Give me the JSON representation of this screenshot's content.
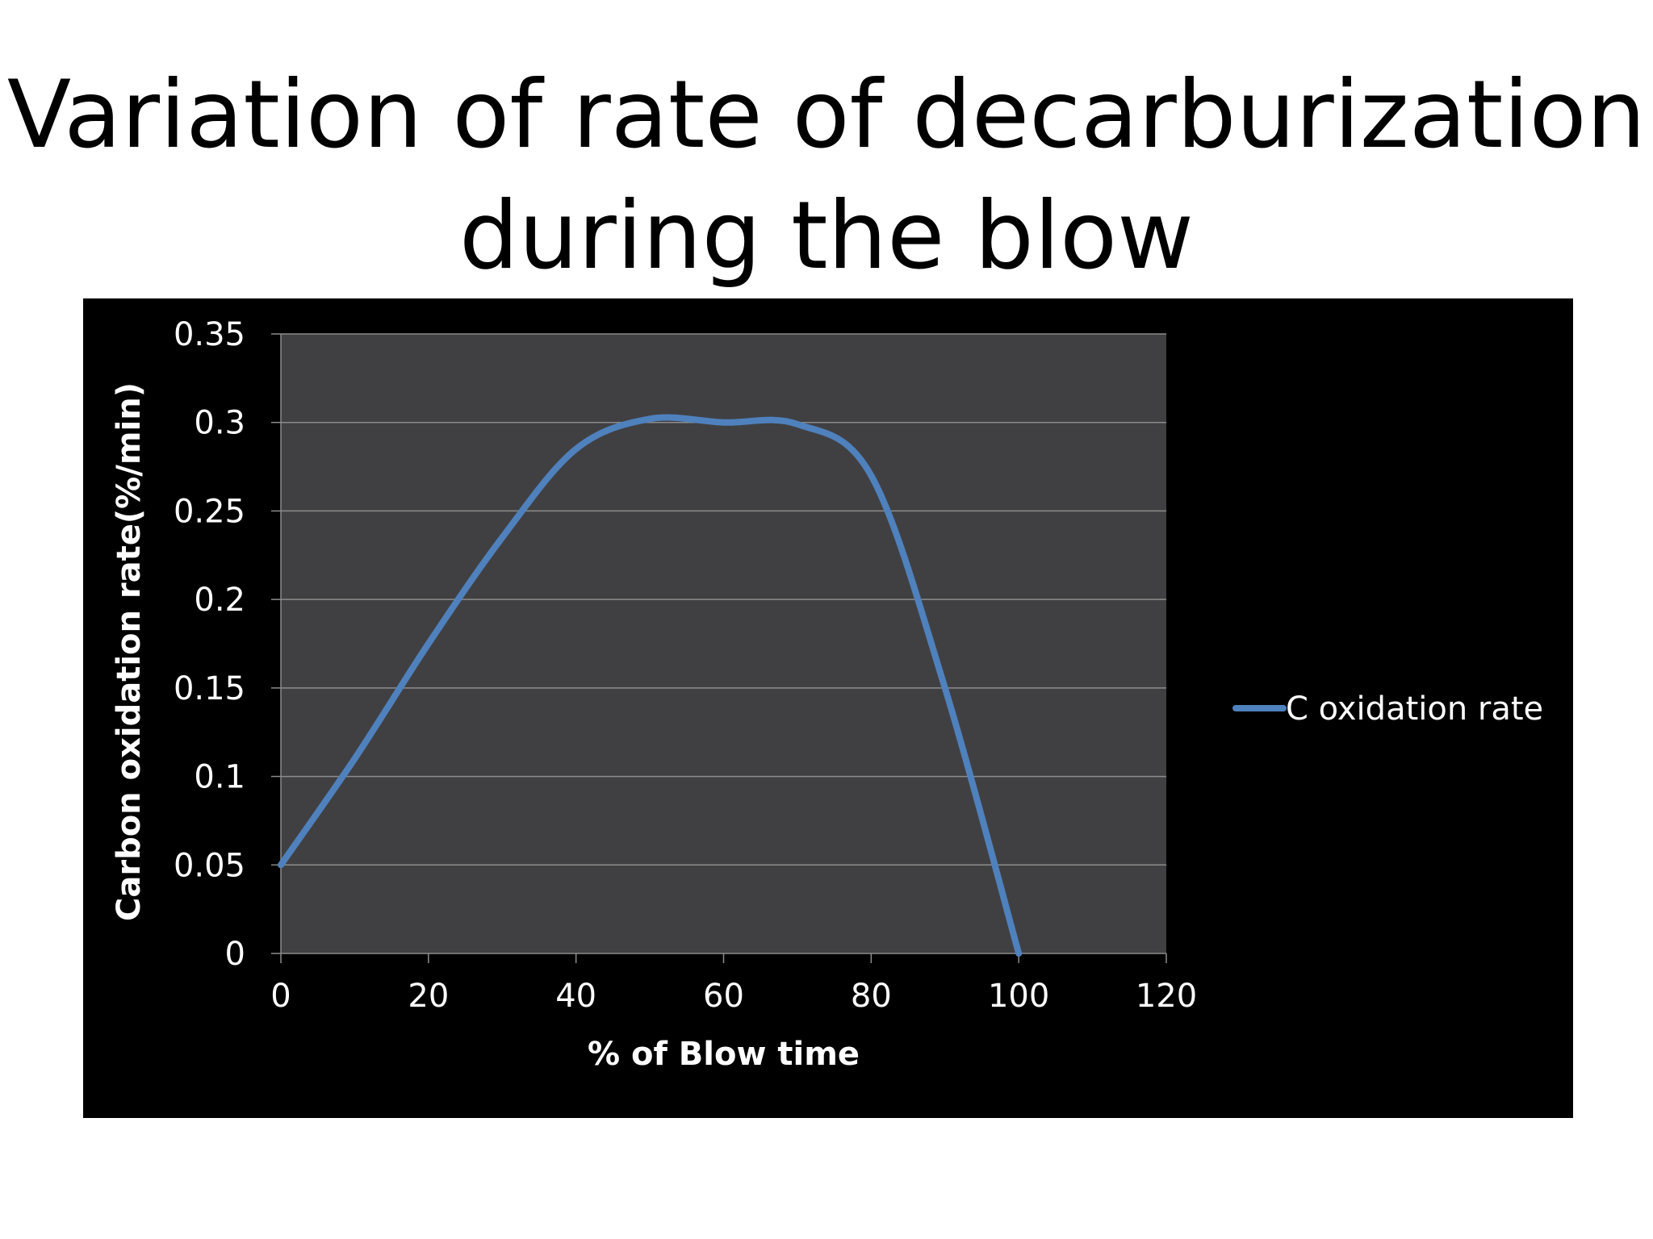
{
  "slide": {
    "title_line1": "Variation of rate of decarburization",
    "title_line2": "during the blow"
  },
  "colors": {
    "chart_background": "#000000",
    "plot_background": "#404043",
    "gridline": "#8c8c8c",
    "series_line": "#4f81bd",
    "text": "#ffffff"
  },
  "chart_data": {
    "type": "line",
    "xlabel": "% of Blow time",
    "ylabel": "Carbon oxidation rate(%/min)",
    "xlim": [
      0,
      120
    ],
    "ylim": [
      0,
      0.35
    ],
    "xticks": [
      "0",
      "20",
      "40",
      "60",
      "80",
      "100",
      "120"
    ],
    "yticks": [
      "0",
      "0.05",
      "0.1",
      "0.15",
      "0.2",
      "0.25",
      "0.3",
      "0.35"
    ],
    "grid": true,
    "legend_position": "right",
    "smooth": true,
    "series": [
      {
        "name": "C oxidation rate",
        "x": [
          0,
          10,
          20,
          30,
          40,
          50,
          60,
          70,
          80,
          90,
          100
        ],
        "y": [
          0.05,
          0.11,
          0.175,
          0.235,
          0.285,
          0.302,
          0.3,
          0.299,
          0.27,
          0.15,
          0.0
        ]
      }
    ]
  }
}
